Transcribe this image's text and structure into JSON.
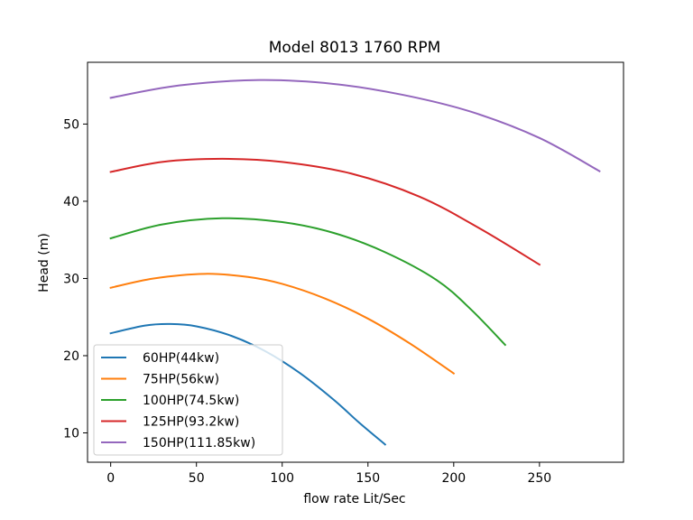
{
  "chart_data": {
    "type": "line",
    "title": "Model 8013 1760 RPM",
    "xlabel": "flow rate Lit/Sec",
    "ylabel": "Head (m)",
    "xlim": [
      -13.5,
      299
    ],
    "ylim": [
      6.2,
      58.0
    ],
    "xticks": [
      0,
      50,
      100,
      150,
      200,
      250
    ],
    "yticks": [
      10,
      20,
      30,
      40,
      50
    ],
    "grid": false,
    "legend_position": "lower-left",
    "series": [
      {
        "name": "60HP(44kw)",
        "color": "#1f77b4",
        "x": [
          0,
          20,
          35,
          50,
          70,
          90,
          110,
          130,
          145,
          160
        ],
        "y": [
          22.9,
          23.9,
          24.1,
          23.8,
          22.6,
          20.6,
          17.8,
          14.3,
          11.3,
          8.5
        ]
      },
      {
        "name": "75HP(56kw)",
        "color": "#ff7f0e",
        "x": [
          0,
          25,
          55,
          80,
          100,
          125,
          150,
          175,
          200
        ],
        "y": [
          28.8,
          30.0,
          30.6,
          30.2,
          29.3,
          27.4,
          24.8,
          21.5,
          17.7
        ]
      },
      {
        "name": "100HP(74.5kw)",
        "color": "#2ca02c",
        "x": [
          0,
          30,
          65,
          100,
          130,
          160,
          190,
          210,
          230
        ],
        "y": [
          35.2,
          37.0,
          37.8,
          37.3,
          35.9,
          33.4,
          29.8,
          26.0,
          21.4
        ]
      },
      {
        "name": "125HP(93.2kw)",
        "color": "#d62728",
        "x": [
          0,
          30,
          65,
          100,
          140,
          180,
          215,
          250
        ],
        "y": [
          43.8,
          45.1,
          45.5,
          45.1,
          43.6,
          40.6,
          36.5,
          31.8
        ]
      },
      {
        "name": "150HP(111.85kw)",
        "color": "#9467bd",
        "x": [
          0,
          40,
          87,
          130,
          170,
          210,
          250,
          285
        ],
        "y": [
          53.4,
          55.0,
          55.7,
          55.2,
          53.8,
          51.6,
          48.2,
          43.9
        ]
      }
    ]
  }
}
